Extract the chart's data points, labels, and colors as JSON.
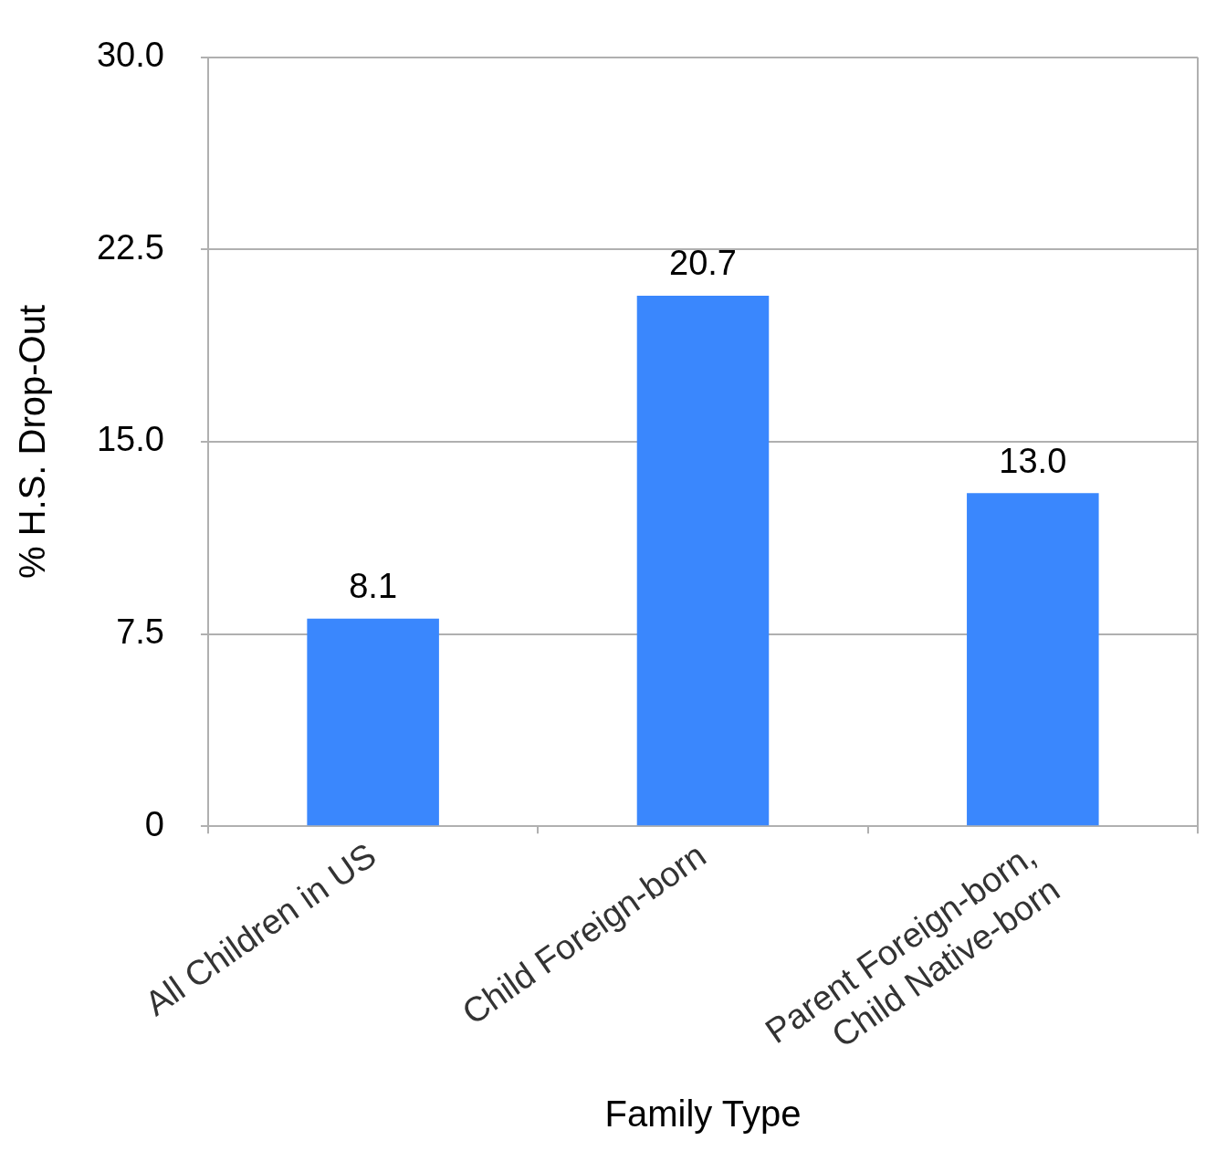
{
  "chart_data": {
    "type": "bar",
    "xlabel": "Family Type",
    "ylabel": "% H.S. Drop-Out",
    "categories": [
      "All Children in US",
      "Child Foreign-born",
      "Parent Foreign-born,\nChild Native-born"
    ],
    "values": [
      8.1,
      20.7,
      13.0
    ],
    "color": "#3a87fd",
    "value_labels": [
      "8.1",
      "20.7",
      "13.0"
    ],
    "ylim": [
      0,
      30
    ],
    "yticks": [
      {
        "value": 0,
        "label": "0"
      },
      7.5,
      {
        "value": 15,
        "label": "15.0"
      },
      22.5,
      {
        "value": 30,
        "label": "30.0"
      }
    ],
    "grid": "y",
    "legend": false
  }
}
